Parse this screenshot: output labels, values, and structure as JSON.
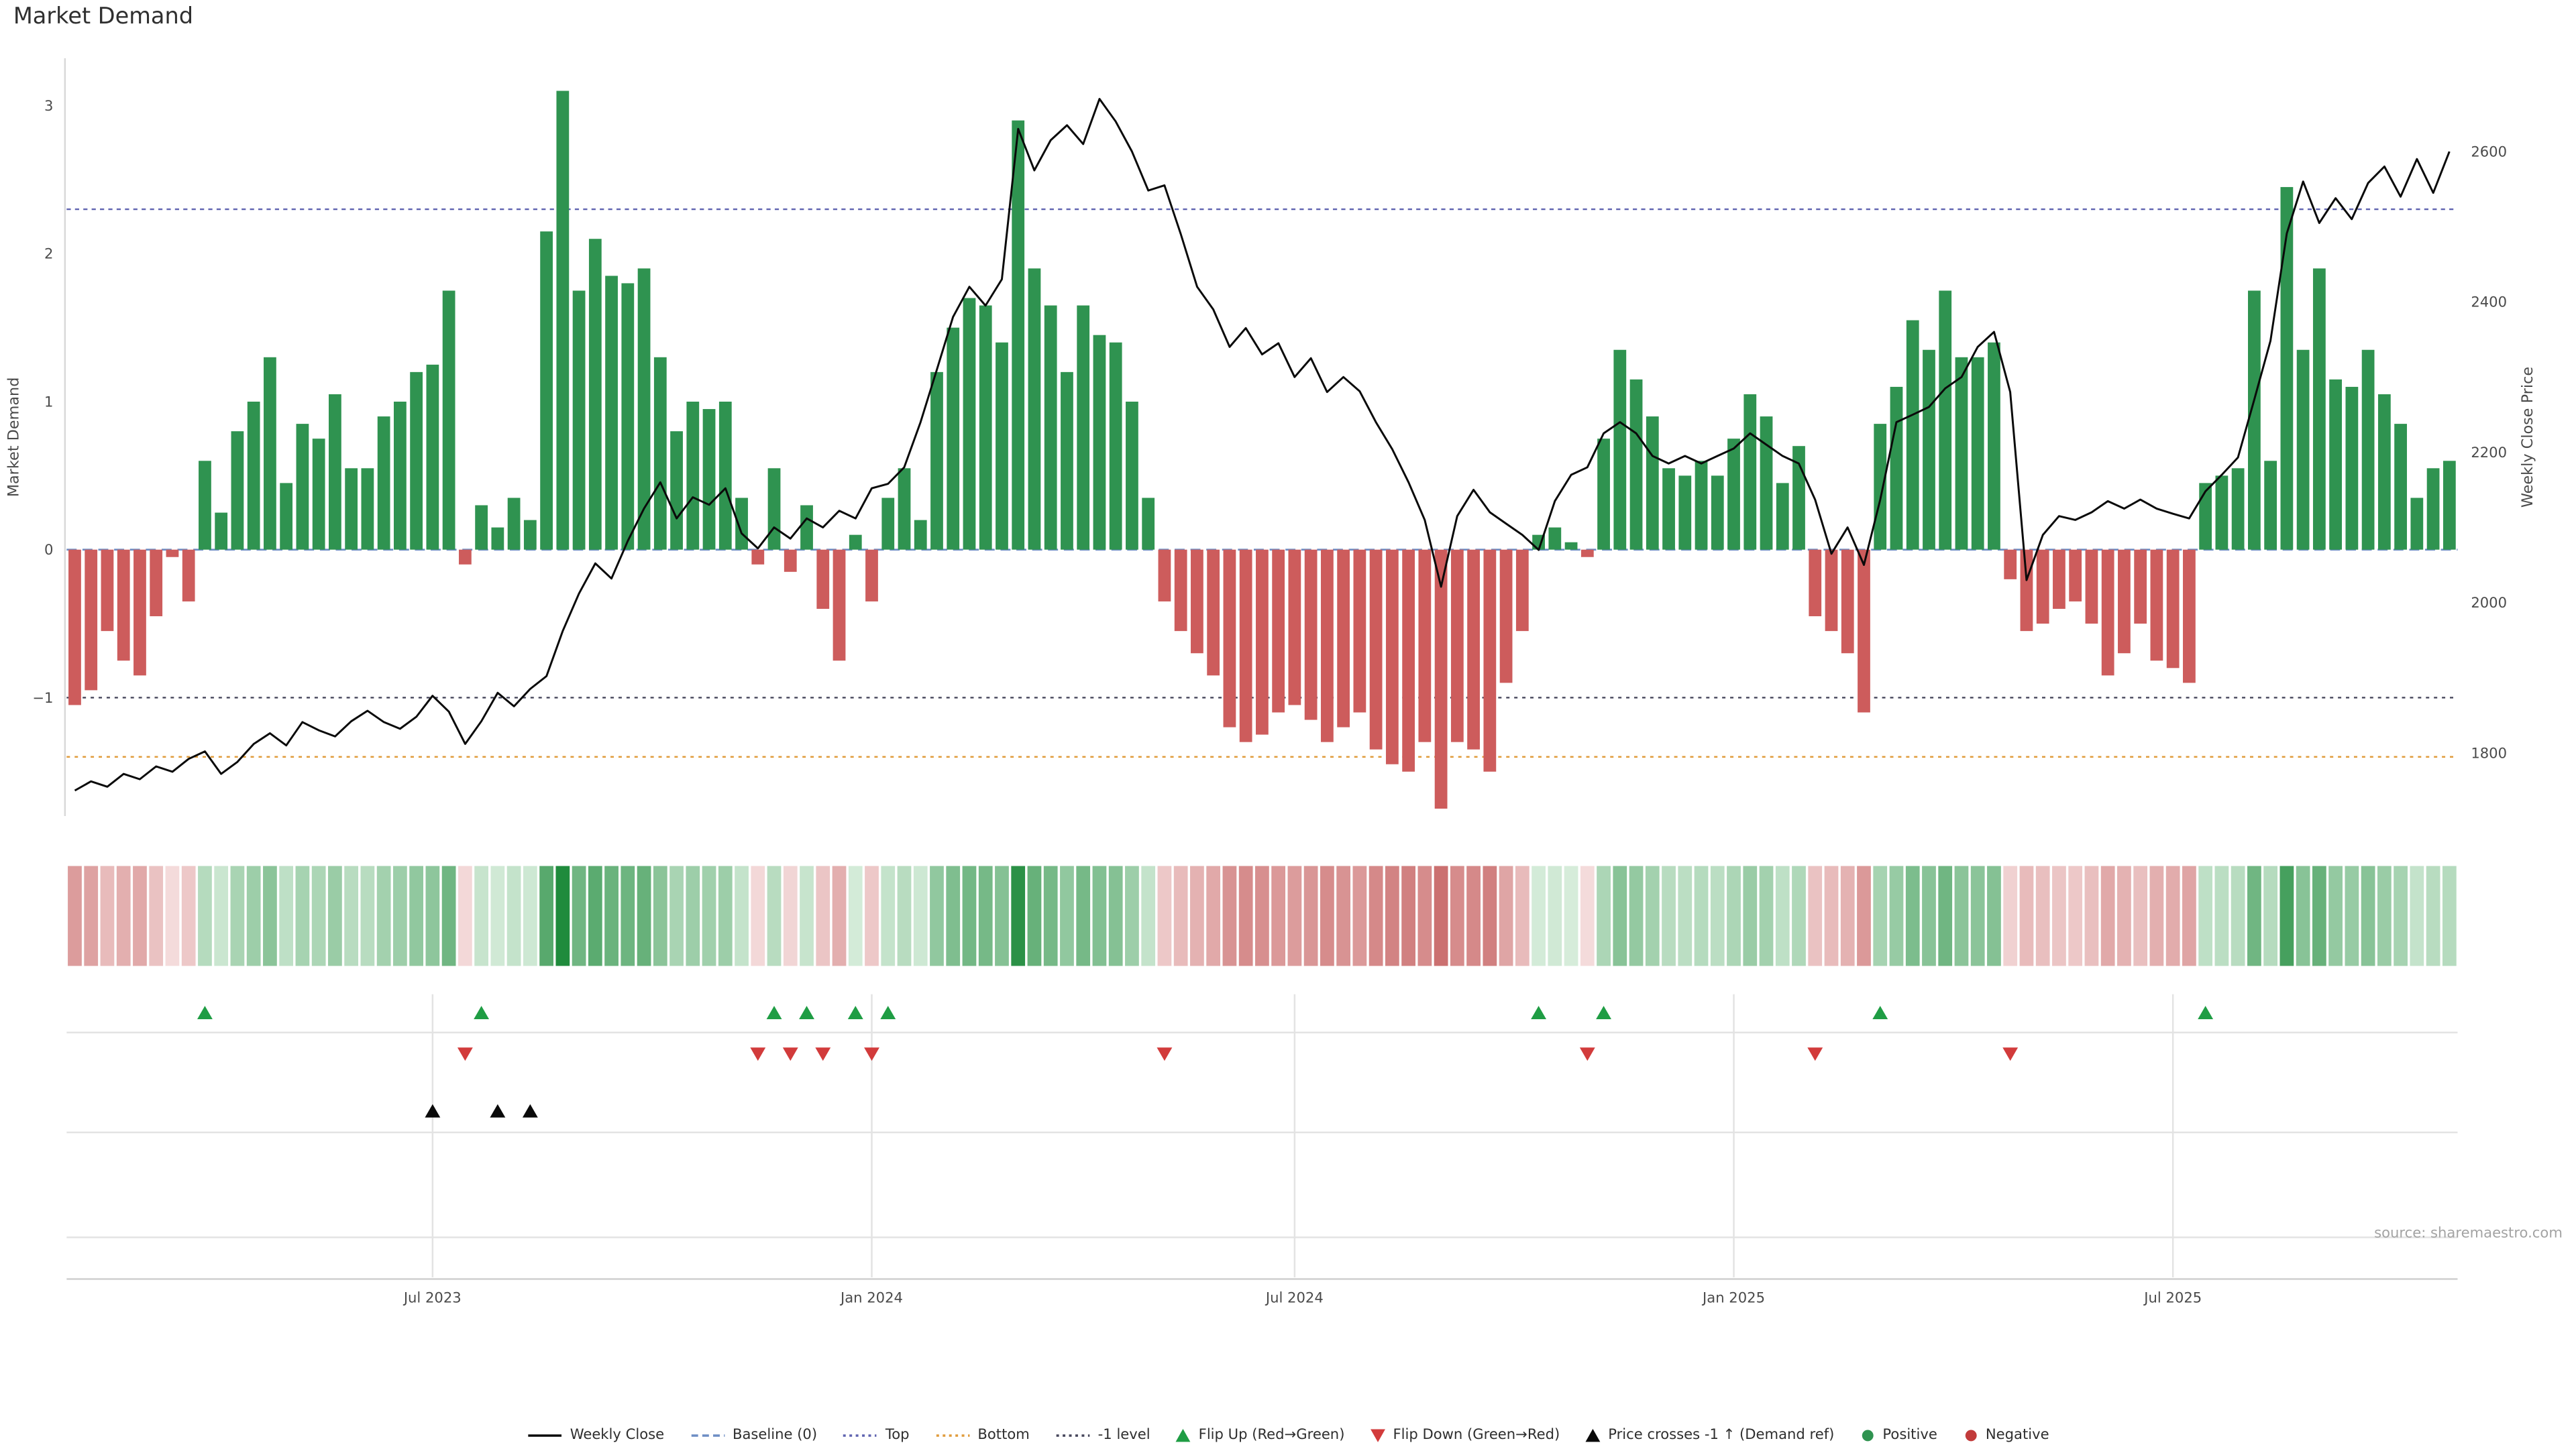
{
  "title": "Market Demand",
  "source": "source: sharemaestro.com",
  "axes": {
    "left_label": "Market Demand",
    "right_label": "Weekly Close Price",
    "left_ticks": [
      {
        "value": 3,
        "label": "3"
      },
      {
        "value": 2,
        "label": "2"
      },
      {
        "value": 1,
        "label": "1"
      },
      {
        "value": 0,
        "label": "0"
      },
      {
        "value": -1,
        "label": "−1"
      }
    ],
    "right_ticks": [
      {
        "value": 2600,
        "label": "2600"
      },
      {
        "value": 2400,
        "label": "2400"
      },
      {
        "value": 2200,
        "label": "2200"
      },
      {
        "value": 2000,
        "label": "2000"
      },
      {
        "value": 1800,
        "label": "1800"
      }
    ],
    "x_ticks": [
      {
        "week": 22,
        "label": "Jul 2023"
      },
      {
        "week": 49,
        "label": "Jan 2024"
      },
      {
        "week": 75,
        "label": "Jul 2024"
      },
      {
        "week": 102,
        "label": "Jan 2025"
      },
      {
        "week": 129,
        "label": "Jul 2025"
      }
    ]
  },
  "chart_data": {
    "type": "bar+line",
    "title": "Market Demand",
    "x_unit": "week",
    "demand_series_label": "Market Demand",
    "price_series_label": "Weekly Close",
    "demand_ylim": [
      -1.8,
      3.32
    ],
    "price_ylim": [
      1716,
      2724
    ],
    "baseline": 0,
    "top_level": 2.3,
    "bottom_level": -1.4,
    "minus_one_level": -1,
    "demand": [
      -1.05,
      -0.95,
      -0.55,
      -0.75,
      -0.85,
      -0.45,
      -0.05,
      -0.35,
      0.6,
      0.25,
      0.8,
      1.0,
      1.3,
      0.45,
      0.85,
      0.75,
      1.05,
      0.55,
      0.55,
      0.9,
      1.0,
      1.2,
      1.25,
      1.75,
      -0.1,
      0.3,
      0.15,
      0.35,
      0.2,
      2.15,
      3.1,
      1.75,
      2.1,
      1.85,
      1.8,
      1.9,
      1.3,
      0.8,
      1.0,
      0.95,
      1.0,
      0.35,
      -0.1,
      0.55,
      -0.15,
      0.3,
      -0.4,
      -0.75,
      0.1,
      -0.35,
      0.35,
      0.55,
      0.2,
      1.2,
      1.5,
      1.7,
      1.65,
      1.4,
      2.9,
      1.9,
      1.65,
      1.2,
      1.65,
      1.45,
      1.4,
      1.0,
      0.35,
      -0.35,
      -0.55,
      -0.7,
      -0.85,
      -1.2,
      -1.3,
      -1.25,
      -1.1,
      -1.05,
      -1.15,
      -1.3,
      -1.2,
      -1.1,
      -1.35,
      -1.45,
      -1.5,
      -1.3,
      -1.75,
      -1.3,
      -1.35,
      -1.5,
      -0.9,
      -0.55,
      0.1,
      0.15,
      0.05,
      -0.05,
      0.75,
      1.35,
      1.15,
      0.9,
      0.55,
      0.5,
      0.6,
      0.5,
      0.75,
      1.05,
      0.9,
      0.45,
      0.7,
      -0.45,
      -0.55,
      -0.7,
      -1.1,
      0.85,
      1.1,
      1.55,
      1.35,
      1.75,
      1.3,
      1.3,
      1.4,
      -0.2,
      -0.55,
      -0.5,
      -0.4,
      -0.35,
      -0.5,
      -0.85,
      -0.7,
      -0.5,
      -0.75,
      -0.8,
      -0.9,
      0.45,
      0.5,
      0.55,
      1.75,
      0.6,
      2.45,
      1.35,
      1.9,
      1.15,
      1.1,
      1.35,
      1.05,
      0.85,
      0.35,
      0.55,
      0.6
    ],
    "price": [
      1750,
      1762,
      1755,
      1772,
      1765,
      1782,
      1775,
      1792,
      1802,
      1772,
      1788,
      1812,
      1826,
      1810,
      1841,
      1830,
      1822,
      1842,
      1856,
      1841,
      1832,
      1848,
      1876,
      1855,
      1812,
      1842,
      1880,
      1862,
      1885,
      1902,
      1962,
      2012,
      2052,
      2032,
      2082,
      2125,
      2160,
      2112,
      2140,
      2130,
      2152,
      2092,
      2072,
      2100,
      2085,
      2112,
      2100,
      2122,
      2112,
      2152,
      2158,
      2180,
      2240,
      2310,
      2380,
      2420,
      2395,
      2430,
      2630,
      2575,
      2615,
      2635,
      2610,
      2670,
      2640,
      2600,
      2548,
      2555,
      2490,
      2420,
      2390,
      2340,
      2365,
      2330,
      2345,
      2300,
      2325,
      2280,
      2300,
      2281,
      2240,
      2204,
      2160,
      2110,
      2021,
      2115,
      2150,
      2120,
      2105,
      2090,
      2070,
      2135,
      2170,
      2180,
      2225,
      2240,
      2225,
      2195,
      2185,
      2195,
      2185,
      2195,
      2205,
      2225,
      2210,
      2195,
      2185,
      2137,
      2065,
      2100,
      2050,
      2137,
      2240,
      2250,
      2260,
      2285,
      2300,
      2340,
      2360,
      2280,
      2030,
      2090,
      2115,
      2110,
      2120,
      2135,
      2125,
      2137,
      2125,
      2118,
      2112,
      2148,
      2170,
      2193,
      2270,
      2348,
      2491,
      2560,
      2505,
      2538,
      2510,
      2558,
      2580,
      2540,
      2590,
      2545,
      2600
    ],
    "markers": {
      "flip_up_weeks": [
        8,
        25,
        43,
        45,
        48,
        50,
        90,
        94,
        111,
        131
      ],
      "flip_down_weeks": [
        24,
        42,
        44,
        46,
        49,
        67,
        93,
        107,
        119
      ],
      "price_cross_weeks": [
        22,
        26,
        28
      ]
    }
  },
  "legend": {
    "items": [
      {
        "swatch": "line",
        "color": "#0a0a0a",
        "label": "Weekly Close"
      },
      {
        "swatch": "dashed",
        "color": "#6d8dc4",
        "label": "Baseline (0)"
      },
      {
        "swatch": "dotted",
        "color": "#5f63b0",
        "label": "Top"
      },
      {
        "swatch": "dotted",
        "color": "#e09c3c",
        "label": "Bottom"
      },
      {
        "swatch": "dotted",
        "color": "#45455a",
        "label": "-1 level"
      },
      {
        "swatch": "tri-up",
        "color": "#1f9d44",
        "label": "Flip Up (Red→Green)"
      },
      {
        "swatch": "tri-down",
        "color": "#d23b3b",
        "label": "Flip Down (Green→Red)"
      },
      {
        "swatch": "tri-up",
        "color": "#0a0a0a",
        "label": "Price crosses -1 ↑ (Demand ref)"
      },
      {
        "swatch": "dot",
        "color": "#2f9350",
        "label": "Positive"
      },
      {
        "swatch": "dot",
        "color": "#c23b3b",
        "label": "Negative"
      }
    ]
  },
  "colors": {
    "positive": "#2f9350",
    "negative": "#cd5c5c",
    "price_line": "#0a0a0a",
    "baseline": "#6d8dc4",
    "top_line": "#5f63b0",
    "bottom_line": "#e09c3c",
    "minus_one_line": "#45455a",
    "flip_up": "#1f9d44",
    "flip_down": "#d23b3b",
    "cross_marker": "#0a0a0a",
    "heat_pos_low": "#d9eedd",
    "heat_pos_high": "#1f8b3c",
    "heat_neg_low": "#f5dede",
    "heat_neg_high": "#cb7070",
    "grid": "#e3e3e3",
    "axis_text": "#4a4a4a",
    "spine": "#d8d8d8"
  }
}
